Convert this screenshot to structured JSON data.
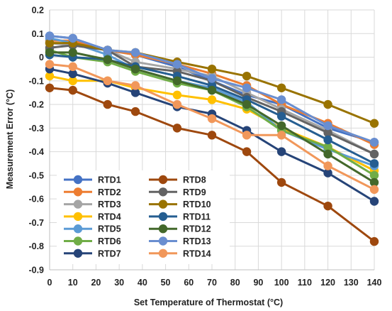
{
  "chart_data": {
    "type": "line",
    "xlabel": "Set Temperature of Thermostat (°C)",
    "ylabel": "Measurement Error (°C)",
    "xlim": [
      0,
      140
    ],
    "ylim": [
      -0.9,
      0.2
    ],
    "x_ticks": [
      0,
      10,
      20,
      30,
      40,
      50,
      60,
      70,
      80,
      90,
      100,
      110,
      120,
      130,
      140
    ],
    "y_ticks": [
      0.2,
      0.1,
      0,
      -0.1,
      -0.2,
      -0.3,
      -0.4,
      -0.5,
      -0.6,
      -0.7,
      -0.8,
      -0.9
    ],
    "x_tick_labels": [
      "0",
      "10",
      "20",
      "30",
      "40",
      "50",
      "60",
      "70",
      "80",
      "90",
      "100",
      "110",
      "120",
      "130",
      "140"
    ],
    "y_tick_labels": [
      "0.2",
      "0.1",
      "0",
      "-0.1",
      "-0.2",
      "-0.3",
      "-0.4",
      "-0.5",
      "-0.6",
      "-0.7",
      "-0.8",
      "-0.9"
    ],
    "grid": true,
    "legend_position": "bottom-left",
    "x": [
      0,
      10,
      25,
      37,
      55,
      70,
      85,
      100,
      120,
      140
    ],
    "series": [
      {
        "name": "RTD1",
        "color": "#4472c4",
        "values": [
          0.09,
          0.08,
          0.03,
          0.01,
          -0.04,
          -0.1,
          -0.16,
          -0.2,
          -0.3,
          -0.36
        ]
      },
      {
        "name": "RTD2",
        "color": "#ed7d31",
        "values": [
          0.07,
          0.07,
          0.03,
          0.01,
          -0.03,
          -0.07,
          -0.12,
          -0.2,
          -0.28,
          -0.37
        ]
      },
      {
        "name": "RTD3",
        "color": "#a5a5a5",
        "values": [
          0.06,
          0.05,
          0.03,
          -0.02,
          -0.05,
          -0.08,
          -0.15,
          -0.22,
          -0.31,
          -0.41
        ]
      },
      {
        "name": "RTD4",
        "color": "#ffc000",
        "values": [
          -0.08,
          -0.1,
          -0.1,
          -0.13,
          -0.16,
          -0.18,
          -0.22,
          -0.3,
          -0.38,
          -0.48
        ]
      },
      {
        "name": "RTD5",
        "color": "#5b9bd5",
        "values": [
          0.08,
          0.06,
          0.01,
          -0.05,
          -0.1,
          -0.13,
          -0.19,
          -0.31,
          -0.39,
          -0.46
        ]
      },
      {
        "name": "RTD6",
        "color": "#70ad47",
        "values": [
          0.03,
          0.0,
          -0.02,
          -0.06,
          -0.11,
          -0.14,
          -0.21,
          -0.31,
          -0.38,
          -0.5
        ]
      },
      {
        "name": "RTD7",
        "color": "#264478",
        "values": [
          -0.05,
          -0.07,
          -0.11,
          -0.15,
          -0.21,
          -0.24,
          -0.31,
          -0.4,
          -0.49,
          -0.61
        ]
      },
      {
        "name": "RTD8",
        "color": "#9e480e",
        "values": [
          -0.13,
          -0.14,
          -0.2,
          -0.23,
          -0.3,
          -0.33,
          -0.4,
          -0.53,
          -0.63,
          -0.78
        ]
      },
      {
        "name": "RTD9",
        "color": "#636363",
        "values": [
          0.04,
          0.05,
          0.03,
          -0.04,
          -0.06,
          -0.1,
          -0.17,
          -0.23,
          -0.32,
          -0.41
        ]
      },
      {
        "name": "RTD10",
        "color": "#997300",
        "values": [
          0.06,
          0.06,
          0.03,
          0.02,
          -0.02,
          -0.05,
          -0.08,
          -0.13,
          -0.2,
          -0.28
        ]
      },
      {
        "name": "RTD11",
        "color": "#255e91",
        "values": [
          0.01,
          0.0,
          -0.01,
          -0.04,
          -0.08,
          -0.12,
          -0.18,
          -0.25,
          -0.35,
          -0.45
        ]
      },
      {
        "name": "RTD12",
        "color": "#43682b",
        "values": [
          0.02,
          0.02,
          -0.01,
          -0.05,
          -0.1,
          -0.14,
          -0.2,
          -0.29,
          -0.41,
          -0.53
        ]
      },
      {
        "name": "RTD13",
        "color": "#698ed0",
        "values": [
          0.09,
          0.08,
          0.03,
          0.02,
          -0.03,
          -0.09,
          -0.13,
          -0.18,
          -0.29,
          -0.36
        ]
      },
      {
        "name": "RTD14",
        "color": "#f1975a",
        "values": [
          -0.03,
          -0.04,
          -0.1,
          -0.12,
          -0.2,
          -0.26,
          -0.33,
          -0.33,
          -0.46,
          -0.56
        ]
      }
    ]
  }
}
